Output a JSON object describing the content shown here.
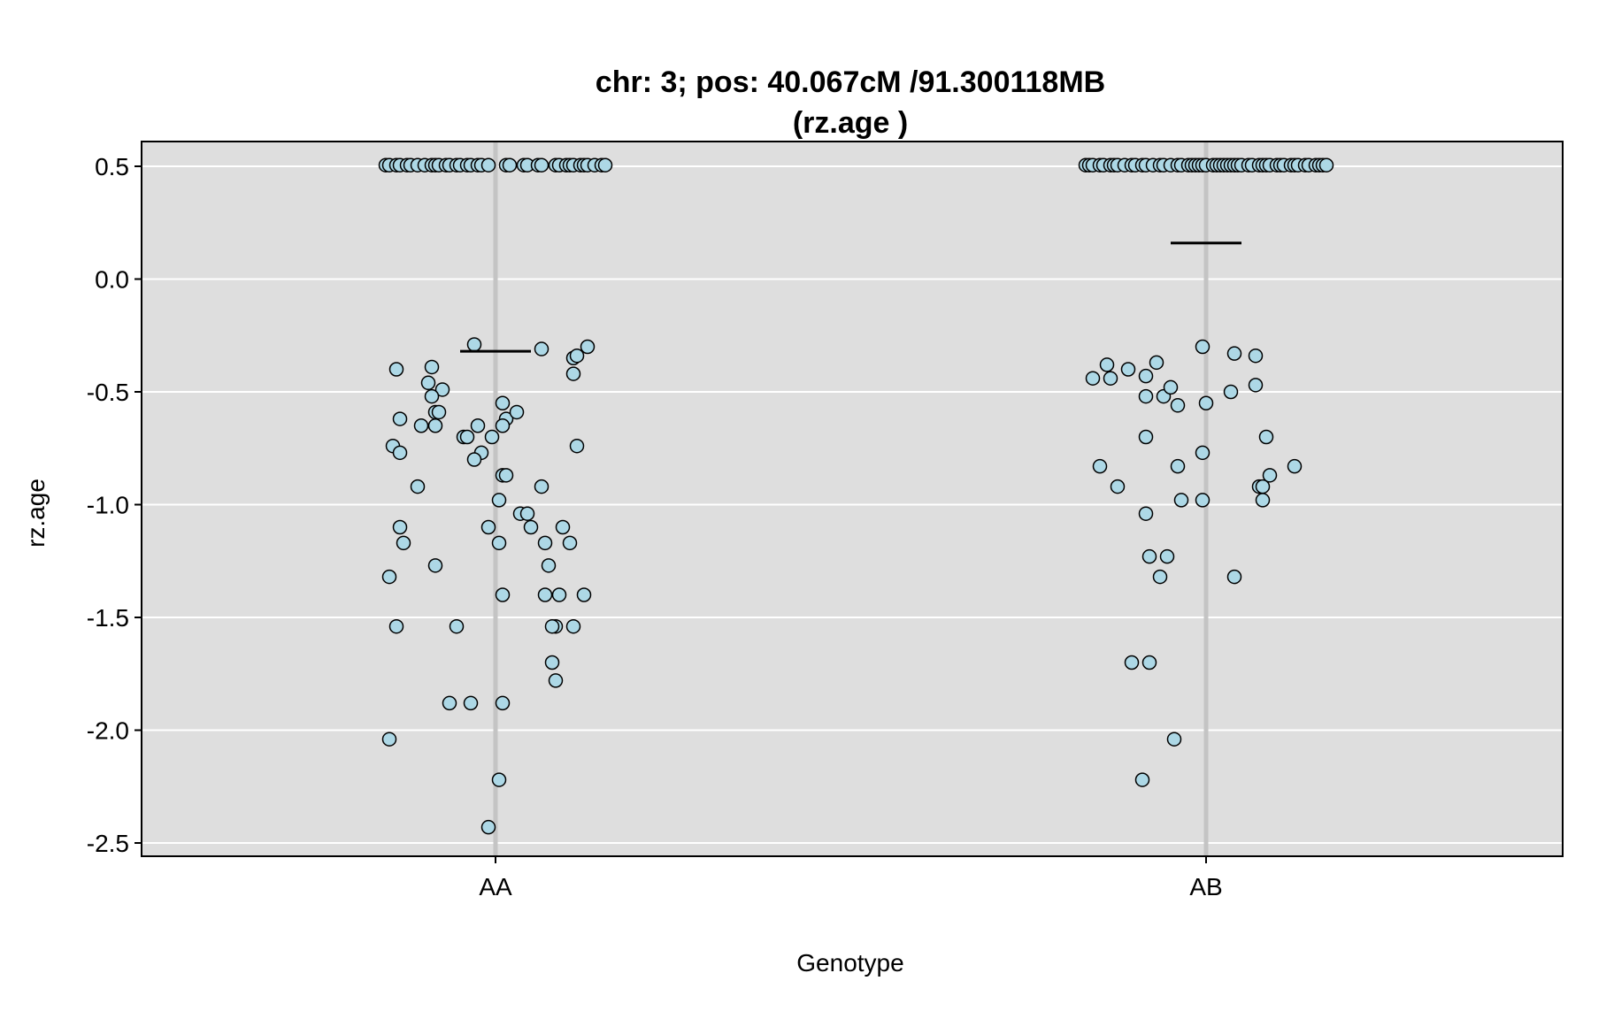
{
  "chart_data": {
    "type": "scatter",
    "title": "chr: 3; pos: 40.067cM /91.300118MB",
    "subtitle": "(rz.age )",
    "xlabel": "Genotype",
    "ylabel": "rz.age",
    "categories": [
      "AA",
      "AB"
    ],
    "ylim": [
      -2.55,
      0.62
    ],
    "yticks": [
      0.5,
      0.0,
      -0.5,
      -1.0,
      -1.5,
      -2.0,
      -2.5
    ],
    "ytick_labels": [
      "0.5",
      "0.0",
      "-0.5",
      "-1.0",
      "-1.5",
      "-2.0",
      "-2.5"
    ],
    "grid": true,
    "background_color": "#dedede",
    "point_fill": "#add8e6",
    "point_stroke": "#000000",
    "series": [
      {
        "category": "AA",
        "mean": -0.32,
        "points": [
          [
            -0.31,
            0.505
          ],
          [
            -0.3,
            0.505
          ],
          [
            -0.28,
            0.505
          ],
          [
            -0.27,
            0.505
          ],
          [
            -0.25,
            0.505
          ],
          [
            -0.24,
            0.505
          ],
          [
            -0.22,
            0.505
          ],
          [
            -0.2,
            0.505
          ],
          [
            -0.18,
            0.505
          ],
          [
            -0.17,
            0.505
          ],
          [
            -0.16,
            0.505
          ],
          [
            -0.14,
            0.505
          ],
          [
            -0.13,
            0.505
          ],
          [
            -0.11,
            0.505
          ],
          [
            -0.1,
            0.505
          ],
          [
            -0.08,
            0.505
          ],
          [
            -0.07,
            0.505
          ],
          [
            -0.05,
            0.505
          ],
          [
            -0.04,
            0.505
          ],
          [
            -0.02,
            0.505
          ],
          [
            0.03,
            0.505
          ],
          [
            0.04,
            0.505
          ],
          [
            0.08,
            0.505
          ],
          [
            0.09,
            0.505
          ],
          [
            0.12,
            0.505
          ],
          [
            0.13,
            0.505
          ],
          [
            0.17,
            0.505
          ],
          [
            0.18,
            0.505
          ],
          [
            0.2,
            0.505
          ],
          [
            0.21,
            0.505
          ],
          [
            0.22,
            0.505
          ],
          [
            0.24,
            0.505
          ],
          [
            0.25,
            0.505
          ],
          [
            0.26,
            0.505
          ],
          [
            0.28,
            0.505
          ],
          [
            0.3,
            0.505
          ],
          [
            0.31,
            0.505
          ],
          [
            -0.06,
            -0.29
          ],
          [
            -0.28,
            -0.4
          ],
          [
            -0.18,
            -0.39
          ],
          [
            -0.19,
            -0.46
          ],
          [
            -0.15,
            -0.49
          ],
          [
            -0.18,
            -0.52
          ],
          [
            -0.17,
            -0.59
          ],
          [
            -0.16,
            -0.59
          ],
          [
            -0.27,
            -0.62
          ],
          [
            -0.21,
            -0.65
          ],
          [
            -0.17,
            -0.65
          ],
          [
            -0.05,
            -0.65
          ],
          [
            -0.09,
            -0.7
          ],
          [
            -0.08,
            -0.7
          ],
          [
            -0.01,
            -0.7
          ],
          [
            -0.29,
            -0.74
          ],
          [
            -0.27,
            -0.77
          ],
          [
            -0.04,
            -0.77
          ],
          [
            -0.06,
            -0.8
          ],
          [
            -0.22,
            -0.92
          ],
          [
            0.02,
            -0.55
          ],
          [
            0.03,
            -0.62
          ],
          [
            0.06,
            -0.59
          ],
          [
            0.02,
            -0.65
          ],
          [
            0.02,
            -0.87
          ],
          [
            0.03,
            -0.87
          ],
          [
            0.01,
            -0.98
          ],
          [
            -0.02,
            -1.1
          ],
          [
            0.07,
            -1.04
          ],
          [
            0.09,
            -1.04
          ],
          [
            0.1,
            -1.1
          ],
          [
            0.14,
            -1.17
          ],
          [
            0.01,
            -1.17
          ],
          [
            -0.27,
            -1.1
          ],
          [
            -0.26,
            -1.17
          ],
          [
            -0.3,
            -1.32
          ],
          [
            -0.17,
            -1.27
          ],
          [
            -0.11,
            -1.54
          ],
          [
            -0.28,
            -1.54
          ],
          [
            0.15,
            -1.27
          ],
          [
            0.14,
            -1.4
          ],
          [
            0.02,
            -1.4
          ],
          [
            0.13,
            -0.92
          ],
          [
            0.19,
            -1.1
          ],
          [
            0.21,
            -1.17
          ],
          [
            0.18,
            -1.4
          ],
          [
            0.22,
            -1.54
          ],
          [
            0.25,
            -1.4
          ],
          [
            0.17,
            -1.54
          ],
          [
            0.16,
            -1.54
          ],
          [
            0.23,
            -0.74
          ],
          [
            0.13,
            -0.31
          ],
          [
            0.22,
            -0.35
          ],
          [
            0.22,
            -0.42
          ],
          [
            0.23,
            -0.34
          ],
          [
            0.26,
            -0.3
          ],
          [
            0.16,
            -1.7
          ],
          [
            0.17,
            -1.78
          ],
          [
            -0.13,
            -1.88
          ],
          [
            -0.07,
            -1.88
          ],
          [
            0.02,
            -1.88
          ],
          [
            -0.3,
            -2.04
          ],
          [
            0.01,
            -2.22
          ],
          [
            -0.02,
            -2.43
          ]
        ]
      },
      {
        "category": "AB",
        "mean": 0.16,
        "points": [
          [
            -0.34,
            0.505
          ],
          [
            -0.33,
            0.505
          ],
          [
            -0.32,
            0.505
          ],
          [
            -0.3,
            0.505
          ],
          [
            -0.29,
            0.505
          ],
          [
            -0.27,
            0.505
          ],
          [
            -0.26,
            0.505
          ],
          [
            -0.25,
            0.505
          ],
          [
            -0.23,
            0.505
          ],
          [
            -0.21,
            0.505
          ],
          [
            -0.2,
            0.505
          ],
          [
            -0.18,
            0.505
          ],
          [
            -0.17,
            0.505
          ],
          [
            -0.15,
            0.505
          ],
          [
            -0.13,
            0.505
          ],
          [
            -0.12,
            0.505
          ],
          [
            -0.1,
            0.505
          ],
          [
            -0.08,
            0.505
          ],
          [
            -0.07,
            0.505
          ],
          [
            -0.05,
            0.505
          ],
          [
            -0.04,
            0.505
          ],
          [
            -0.03,
            0.505
          ],
          [
            -0.02,
            0.505
          ],
          [
            -0.01,
            0.505
          ],
          [
            0.0,
            0.505
          ],
          [
            0.02,
            0.505
          ],
          [
            0.03,
            0.505
          ],
          [
            0.04,
            0.505
          ],
          [
            0.05,
            0.505
          ],
          [
            0.06,
            0.505
          ],
          [
            0.07,
            0.505
          ],
          [
            0.08,
            0.505
          ],
          [
            0.09,
            0.505
          ],
          [
            0.1,
            0.505
          ],
          [
            0.12,
            0.505
          ],
          [
            0.13,
            0.505
          ],
          [
            0.15,
            0.505
          ],
          [
            0.16,
            0.505
          ],
          [
            0.17,
            0.505
          ],
          [
            0.18,
            0.505
          ],
          [
            0.2,
            0.505
          ],
          [
            0.21,
            0.505
          ],
          [
            0.22,
            0.505
          ],
          [
            0.24,
            0.505
          ],
          [
            0.25,
            0.505
          ],
          [
            0.26,
            0.505
          ],
          [
            0.28,
            0.505
          ],
          [
            0.29,
            0.505
          ],
          [
            0.31,
            0.505
          ],
          [
            0.32,
            0.505
          ],
          [
            0.33,
            0.505
          ],
          [
            0.34,
            0.505
          ],
          [
            -0.32,
            -0.44
          ],
          [
            -0.28,
            -0.38
          ],
          [
            -0.27,
            -0.44
          ],
          [
            -0.22,
            -0.4
          ],
          [
            -0.14,
            -0.37
          ],
          [
            -0.17,
            -0.43
          ],
          [
            -0.17,
            -0.52
          ],
          [
            -0.12,
            -0.52
          ],
          [
            -0.1,
            -0.48
          ],
          [
            -0.08,
            -0.56
          ],
          [
            -0.01,
            -0.3
          ],
          [
            0.0,
            -0.55
          ],
          [
            0.07,
            -0.5
          ],
          [
            0.08,
            -0.33
          ],
          [
            0.14,
            -0.34
          ],
          [
            0.14,
            -0.47
          ],
          [
            0.17,
            -0.7
          ],
          [
            -0.3,
            -0.83
          ],
          [
            -0.25,
            -0.92
          ],
          [
            -0.17,
            -0.7
          ],
          [
            -0.08,
            -0.83
          ],
          [
            -0.01,
            -0.77
          ],
          [
            -0.07,
            -0.98
          ],
          [
            -0.01,
            -0.98
          ],
          [
            0.18,
            -0.87
          ],
          [
            0.15,
            -0.92
          ],
          [
            0.16,
            -0.92
          ],
          [
            0.16,
            -0.98
          ],
          [
            0.25,
            -0.83
          ],
          [
            -0.17,
            -1.04
          ],
          [
            -0.16,
            -1.23
          ],
          [
            -0.11,
            -1.23
          ],
          [
            -0.13,
            -1.32
          ],
          [
            0.08,
            -1.32
          ],
          [
            -0.21,
            -1.7
          ],
          [
            -0.16,
            -1.7
          ],
          [
            -0.09,
            -2.04
          ],
          [
            -0.18,
            -2.22
          ]
        ]
      }
    ]
  }
}
